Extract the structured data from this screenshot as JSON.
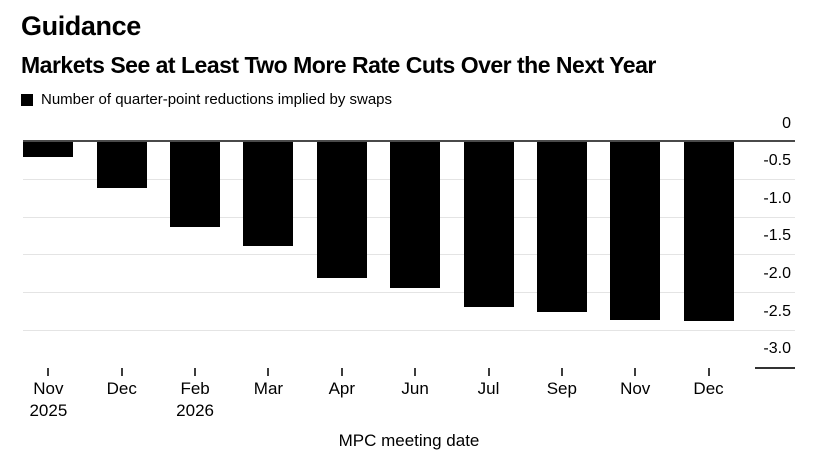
{
  "header": {
    "title": "Guidance",
    "subtitle": "Markets See at Least Two More Rate Cuts Over the Next Year"
  },
  "legend": {
    "swatch_color": "#000000",
    "label": "Number of quarter-point reductions implied by swaps"
  },
  "chart_data": {
    "type": "bar",
    "title": "Guidance",
    "subtitle": "Markets See at Least Two More Rate Cuts Over the Next Year",
    "series_label": "Number of quarter-point reductions implied by swaps",
    "categories": [
      "Nov",
      "Dec",
      "Feb",
      "Mar",
      "Apr",
      "Jun",
      "Jul",
      "Sep",
      "Nov",
      "Dec"
    ],
    "category_years": [
      "2025",
      "",
      "2026",
      "",
      "",
      "",
      "",
      "",
      "",
      ""
    ],
    "values": [
      -0.2,
      -0.62,
      -1.14,
      -1.39,
      -1.81,
      -1.94,
      -2.2,
      -2.26,
      -2.37,
      -2.38
    ],
    "xlabel": "MPC meeting date",
    "ylabel": "",
    "ylim": [
      -3.0,
      0
    ],
    "yticks": [
      0,
      -0.5,
      -1.0,
      -1.5,
      -2.0,
      -2.5,
      -3.0
    ],
    "ytick_labels": [
      "0",
      "-0.5",
      "-1.0",
      "-1.5",
      "-2.0",
      "-2.5",
      "-3.0"
    ],
    "bar_color": "#000000",
    "gridline_color": "#e4e4e4",
    "zero_line_color": "#4a4a4a",
    "tick_color": "#3d3d3d",
    "grid": true,
    "legend_position": "top-left",
    "y_axis_side": "right"
  }
}
